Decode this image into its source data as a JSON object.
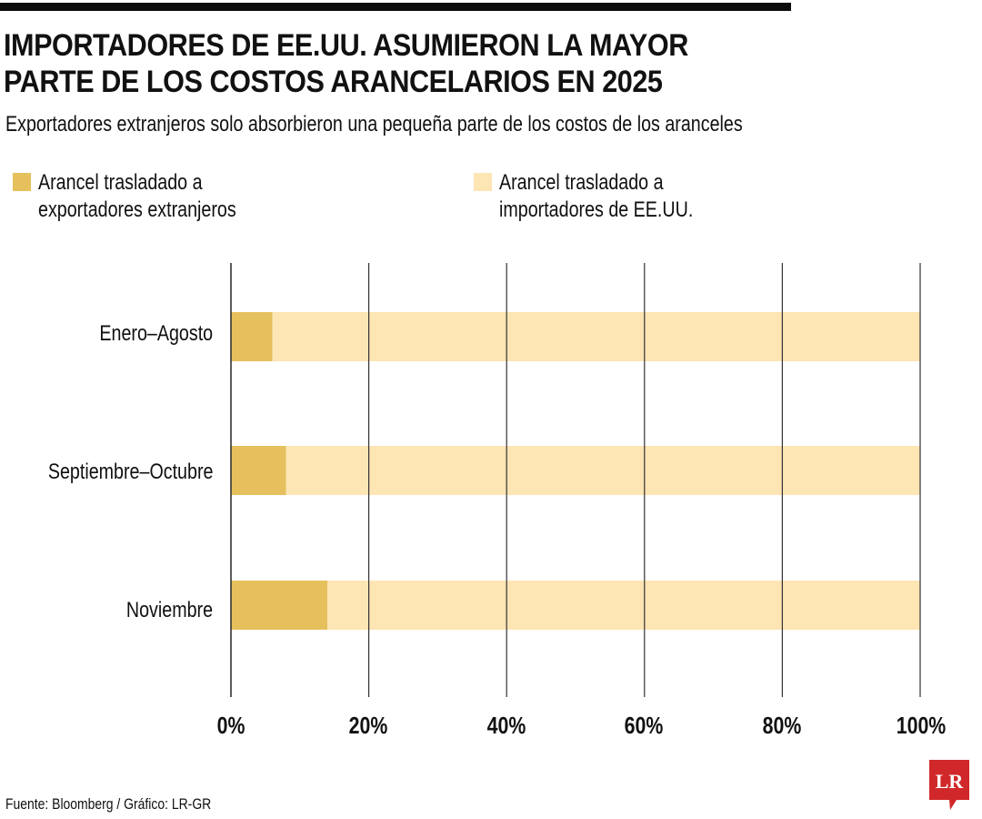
{
  "header": {
    "title_line1": "IMPORTADORES DE EE.UU. ASUMIERON LA MAYOR",
    "title_line2": "PARTE DE LOS COSTOS ARANCELARIOS EN 2025",
    "subtitle": "Exportadores extranjeros solo absorbieron una pequeña parte de los costos de los aranceles"
  },
  "footer": {
    "source": "Fuente: Bloomberg / Gráfico: LR-GR",
    "logo_text": "LR"
  },
  "colors": {
    "exporters": "#E6C05C",
    "importers": "#FDE5B4",
    "gridline": "#333333",
    "logo": "#D0282A"
  },
  "chart_data": {
    "type": "bar",
    "orientation": "horizontal",
    "stacked": true,
    "title": "IMPORTADORES DE EE.UU. ASUMIERON LA MAYOR PARTE DE LOS COSTOS ARANCELARIOS EN 2025",
    "subtitle": "Exportadores extranjeros solo absorbieron una pequeña parte de los costos de los aranceles",
    "categories": [
      "Enero–Agosto",
      "Septiembre–Octubre",
      "Noviembre"
    ],
    "series": [
      {
        "name": "Arancel trasladado a exportadores extranjeros",
        "values": [
          6,
          8,
          14
        ]
      },
      {
        "name": "Arancel trasladado a importadores de EE.UU.",
        "values": [
          94,
          92,
          86
        ]
      }
    ],
    "xlabel": "",
    "ylabel": "",
    "xlim": [
      0,
      100
    ],
    "xticks": [
      "0%",
      "20%",
      "40%",
      "60%",
      "80%",
      "100%"
    ],
    "grid": true,
    "legend_position": "top"
  }
}
